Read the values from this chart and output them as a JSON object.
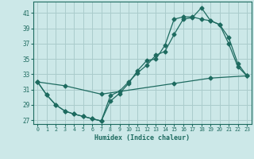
{
  "xlabel": "Humidex (Indice chaleur)",
  "bg_color": "#cce8e8",
  "grid_color": "#aacccc",
  "line_color": "#1e6b60",
  "xlim": [
    -0.5,
    23.5
  ],
  "ylim": [
    26.5,
    42.5
  ],
  "yticks": [
    27,
    29,
    31,
    33,
    35,
    37,
    39,
    41
  ],
  "xticks": [
    0,
    1,
    2,
    3,
    4,
    5,
    6,
    7,
    8,
    9,
    10,
    11,
    12,
    13,
    14,
    15,
    16,
    17,
    18,
    19,
    20,
    21,
    22,
    23
  ],
  "line1_x": [
    0,
    1,
    2,
    3,
    4,
    5,
    6,
    7,
    8,
    9,
    10,
    11,
    12,
    13,
    14,
    15,
    16,
    17,
    18,
    19,
    20,
    21,
    22,
    23
  ],
  "line1_y": [
    32.0,
    30.3,
    29.0,
    28.2,
    27.8,
    27.5,
    27.2,
    26.9,
    30.2,
    30.8,
    32.0,
    33.2,
    34.2,
    35.5,
    36.0,
    38.2,
    40.2,
    40.4,
    41.7,
    40.0,
    39.5,
    37.8,
    34.4,
    32.8
  ],
  "line2_x": [
    0,
    1,
    2,
    3,
    4,
    5,
    6,
    7,
    8,
    9,
    10,
    11,
    12,
    13,
    14,
    15,
    16,
    17,
    18,
    19,
    20,
    21,
    22,
    23
  ],
  "line2_y": [
    32.0,
    30.3,
    29.0,
    28.2,
    27.8,
    27.5,
    27.2,
    26.9,
    29.5,
    30.5,
    31.8,
    33.5,
    34.8,
    35.0,
    36.8,
    40.2,
    40.5,
    40.5,
    40.2,
    40.0,
    39.5,
    37.0,
    34.0,
    32.8
  ],
  "line3_x": [
    0,
    3,
    7,
    15,
    19,
    23
  ],
  "line3_y": [
    32.0,
    31.5,
    30.4,
    31.8,
    32.5,
    32.8
  ]
}
